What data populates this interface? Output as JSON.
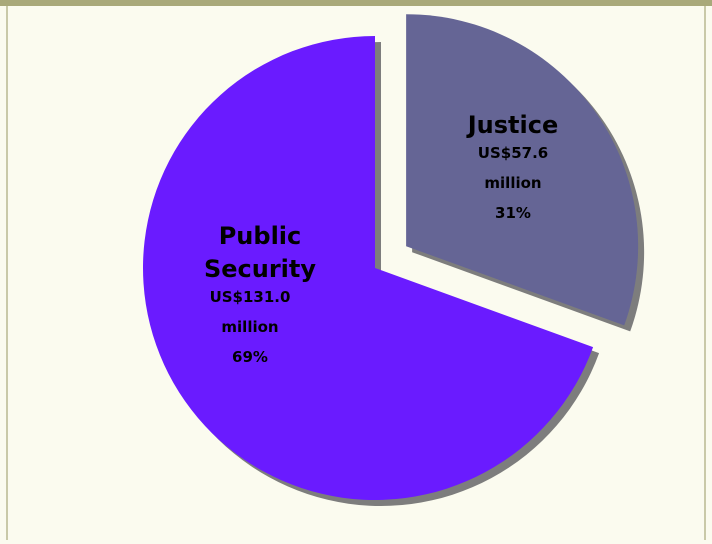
{
  "chart_data": {
    "type": "pie",
    "title": "",
    "slices": [
      {
        "name_lines": [
          "Justice"
        ],
        "amount": "US$57.6",
        "unit": "million",
        "percent_label": "31%",
        "value": 57.6,
        "percent": 31,
        "color": "#656595",
        "exploded": true
      },
      {
        "name_lines": [
          "Public",
          "Security"
        ],
        "amount": "US$131.0",
        "unit": "million",
        "percent_label": "69%",
        "value": 131.0,
        "percent": 69,
        "color": "#6a1bff",
        "exploded": false
      }
    ],
    "legend": "none"
  }
}
